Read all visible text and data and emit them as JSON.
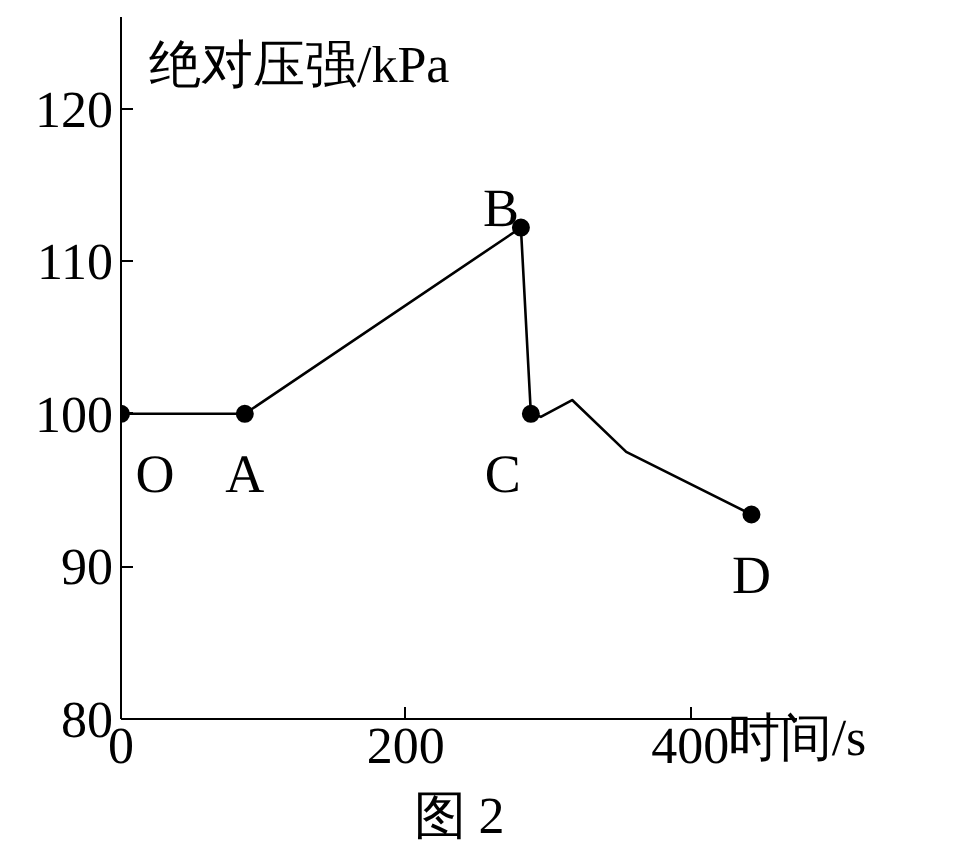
{
  "chart_data": {
    "type": "line",
    "xlabel": "时间/s",
    "ylabel": "绝对压强/kPa",
    "xlim": [
      0,
      475
    ],
    "ylim": [
      80,
      126
    ],
    "xticks": [
      0,
      200,
      400
    ],
    "yticks": [
      80,
      90,
      100,
      110,
      120
    ],
    "grid": false,
    "series": [
      {
        "color": "#000000",
        "marker": "none",
        "x": [
          0,
          87,
          281,
          288,
          295,
          317,
          355,
          443
        ],
        "values": [
          100,
          100,
          112.2,
          100,
          99.8,
          100.9,
          97.5,
          93.4
        ]
      },
      {
        "type": "scatter",
        "color": "#000000",
        "marker": "circle",
        "x": [
          0,
          87,
          281,
          288,
          443
        ],
        "values": [
          100,
          100,
          112.2,
          100,
          93.4
        ]
      }
    ],
    "annotations": [
      {
        "text": "O",
        "x": 0,
        "y": 100
      },
      {
        "text": "A",
        "x": 87,
        "y": 100
      },
      {
        "text": "B",
        "x": 281,
        "y": 112.2
      },
      {
        "text": "C",
        "x": 288,
        "y": 100
      },
      {
        "text": "D",
        "x": 443,
        "y": 93.4
      },
      "图 2"
    ]
  }
}
